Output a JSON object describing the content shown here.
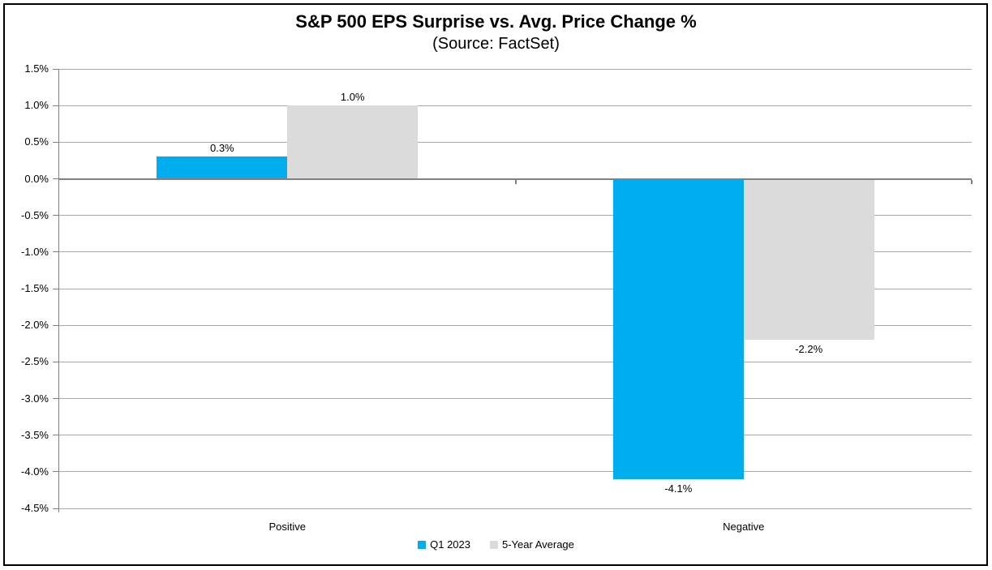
{
  "chart_data": {
    "type": "bar",
    "title": "S&P 500 EPS Surprise vs. Avg. Price Change %",
    "subtitle": "(Source: FactSet)",
    "categories": [
      "Positive",
      "Negative"
    ],
    "series": [
      {
        "name": "Q1 2023",
        "color": "#00AEEF",
        "values": [
          0.3,
          -4.1
        ],
        "labels": [
          "0.3%",
          "-4.1%"
        ]
      },
      {
        "name": "5-Year Average",
        "color": "#DBDBDB",
        "values": [
          1.0,
          -2.2
        ],
        "labels": [
          "1.0%",
          "-2.2%"
        ]
      }
    ],
    "xlabel": "",
    "ylabel": "",
    "ylim": [
      -4.5,
      1.5
    ],
    "yticks": [
      {
        "value": 1.5,
        "label": "1.5%"
      },
      {
        "value": 1.0,
        "label": "1.0%"
      },
      {
        "value": 0.5,
        "label": "0.5%"
      },
      {
        "value": 0.0,
        "label": "0.0%"
      },
      {
        "value": -0.5,
        "label": "-0.5%"
      },
      {
        "value": -1.0,
        "label": "-1.0%"
      },
      {
        "value": -1.5,
        "label": "-1.5%"
      },
      {
        "value": -2.0,
        "label": "-2.0%"
      },
      {
        "value": -2.5,
        "label": "-2.5%"
      },
      {
        "value": -3.0,
        "label": "-3.0%"
      },
      {
        "value": -3.5,
        "label": "-3.5%"
      },
      {
        "value": -4.0,
        "label": "-4.0%"
      },
      {
        "value": -4.5,
        "label": "-4.5%"
      }
    ],
    "grid": true,
    "legend_position": "bottom"
  },
  "colors": {
    "series1": "#00AEEF",
    "series2": "#DBDBDB",
    "gridline": "#a9a9a9",
    "axis": "#808080",
    "frame_border": "#000000",
    "background": "#ffffff",
    "text": "#000000"
  }
}
